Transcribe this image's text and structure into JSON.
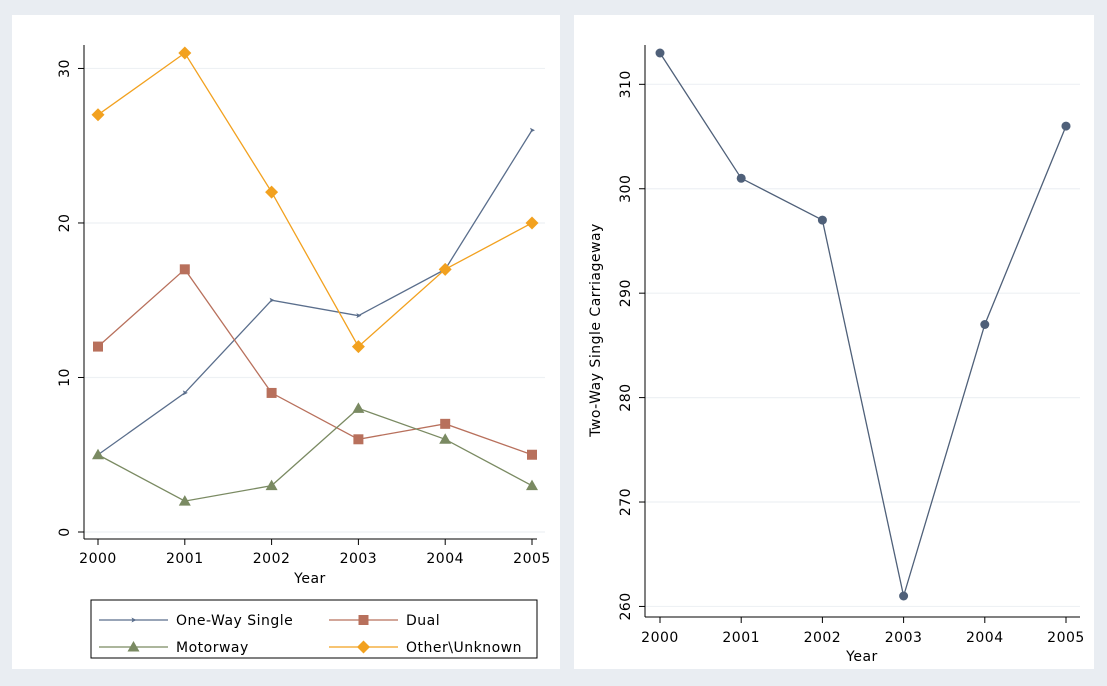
{
  "chart_data": [
    {
      "type": "line",
      "x": [
        2000,
        2001,
        2002,
        2003,
        2004,
        2005
      ],
      "x_tick_labels": [
        "2000",
        "2001",
        "2002",
        "2003",
        "2004",
        "2005"
      ],
      "y_tick_labels": [
        "0",
        "10",
        "20",
        "30"
      ],
      "xlabel": "Year",
      "ylabel": "",
      "ylim": [
        0,
        31
      ],
      "grid": true,
      "legend_position": "bottom",
      "series": [
        {
          "name": "One-Way Single",
          "values": [
            5,
            9,
            15,
            14,
            17,
            26
          ],
          "color": "#5a6e8c",
          "marker": "small-arrow"
        },
        {
          "name": "Dual",
          "values": [
            12,
            17,
            9,
            6,
            7,
            5
          ],
          "color": "#b8705c",
          "marker": "square"
        },
        {
          "name": "Motorway",
          "values": [
            5,
            2,
            3,
            8,
            6,
            3
          ],
          "color": "#7a8a62",
          "marker": "triangle"
        },
        {
          "name": "Other\\Unknown",
          "values": [
            27,
            31,
            22,
            12,
            17,
            20
          ],
          "color": "#f2a11f",
          "marker": "diamond"
        }
      ]
    },
    {
      "type": "line",
      "x": [
        2000,
        2001,
        2002,
        2003,
        2004,
        2005
      ],
      "x_tick_labels": [
        "2000",
        "2001",
        "2002",
        "2003",
        "2004",
        "2005"
      ],
      "y_tick_labels": [
        "260",
        "270",
        "280",
        "290",
        "300",
        "310"
      ],
      "xlabel": "Year",
      "ylabel": "Two-Way Single Carriageway",
      "ylim": [
        261,
        313
      ],
      "grid": true,
      "series": [
        {
          "name": "",
          "values": [
            313,
            301,
            297,
            261,
            287,
            306
          ],
          "color": "#4f6079",
          "marker": "circle"
        }
      ]
    }
  ]
}
